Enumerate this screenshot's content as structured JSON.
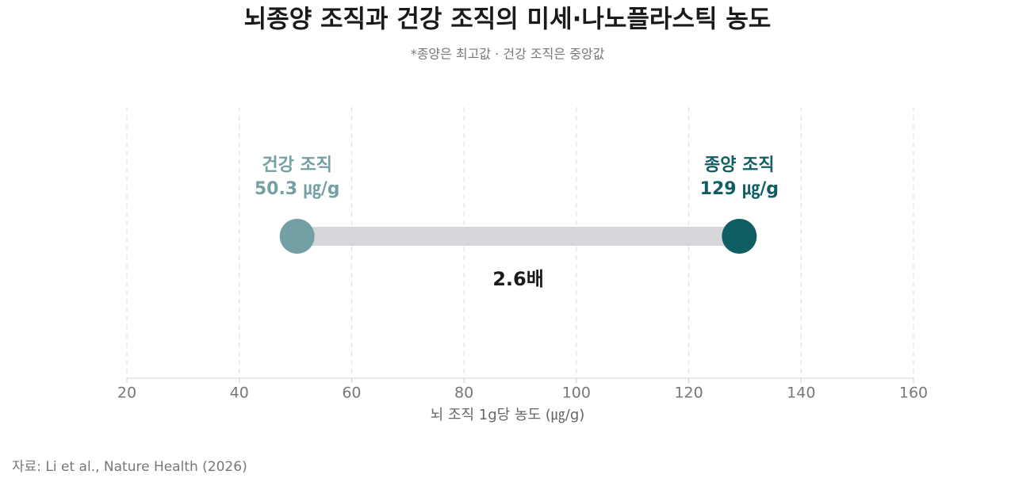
{
  "chart_data": {
    "type": "dumbbell",
    "title": "뇌종양 조직과 건강 조직의 미세·나노플라스틱 농도",
    "subtitle": "*종양은 최고값 · 건강 조직은 중앙값",
    "xlabel": "뇌 조직 1g당 농도 (㎍/g)",
    "categories": [
      "건강 조직",
      "종양 조직"
    ],
    "values": [
      50.3,
      129
    ],
    "value_labels": [
      "50.3 ㎍/g",
      "129 ㎍/g"
    ],
    "colors": [
      "#73a0a4",
      "#0e5e63"
    ],
    "annotation": "2.6배",
    "xlim": [
      20,
      160
    ],
    "xticks": [
      20,
      40,
      60,
      80,
      100,
      120,
      140,
      160
    ],
    "grid": true,
    "source": "자료: Li et al., Nature Health (2026)"
  }
}
